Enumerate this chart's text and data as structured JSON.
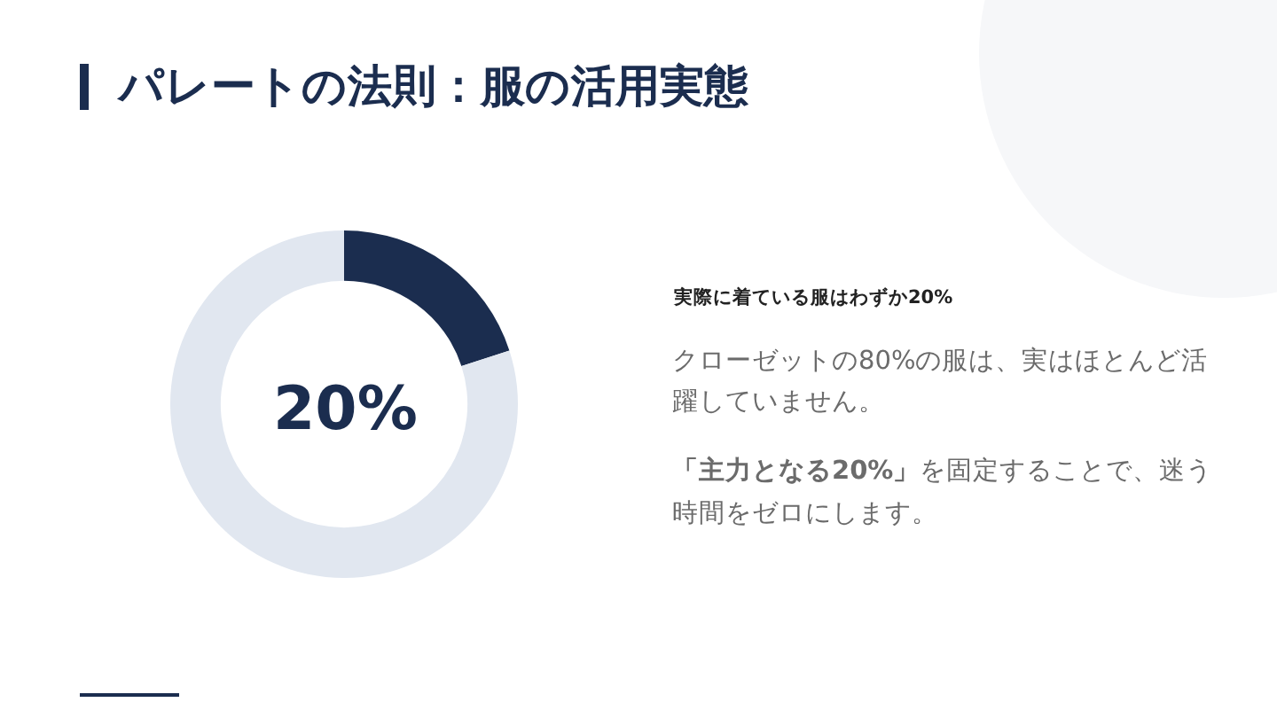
{
  "chart_data": {
    "type": "donut",
    "title": "パレートの法則：服の活用実態",
    "categories": [
      null,
      null
    ],
    "values": [
      20,
      80
    ],
    "colors": [
      "#1b2d4f",
      "#e1e7f0"
    ],
    "annotations": [
      "20%",
      "実際に着ている服はわずか20%",
      "クローゼットの80%の服は、実はほとんど活躍していません。",
      "「主力となる20%」",
      "を固定することで、迷う時間をゼロにします。"
    ]
  }
}
